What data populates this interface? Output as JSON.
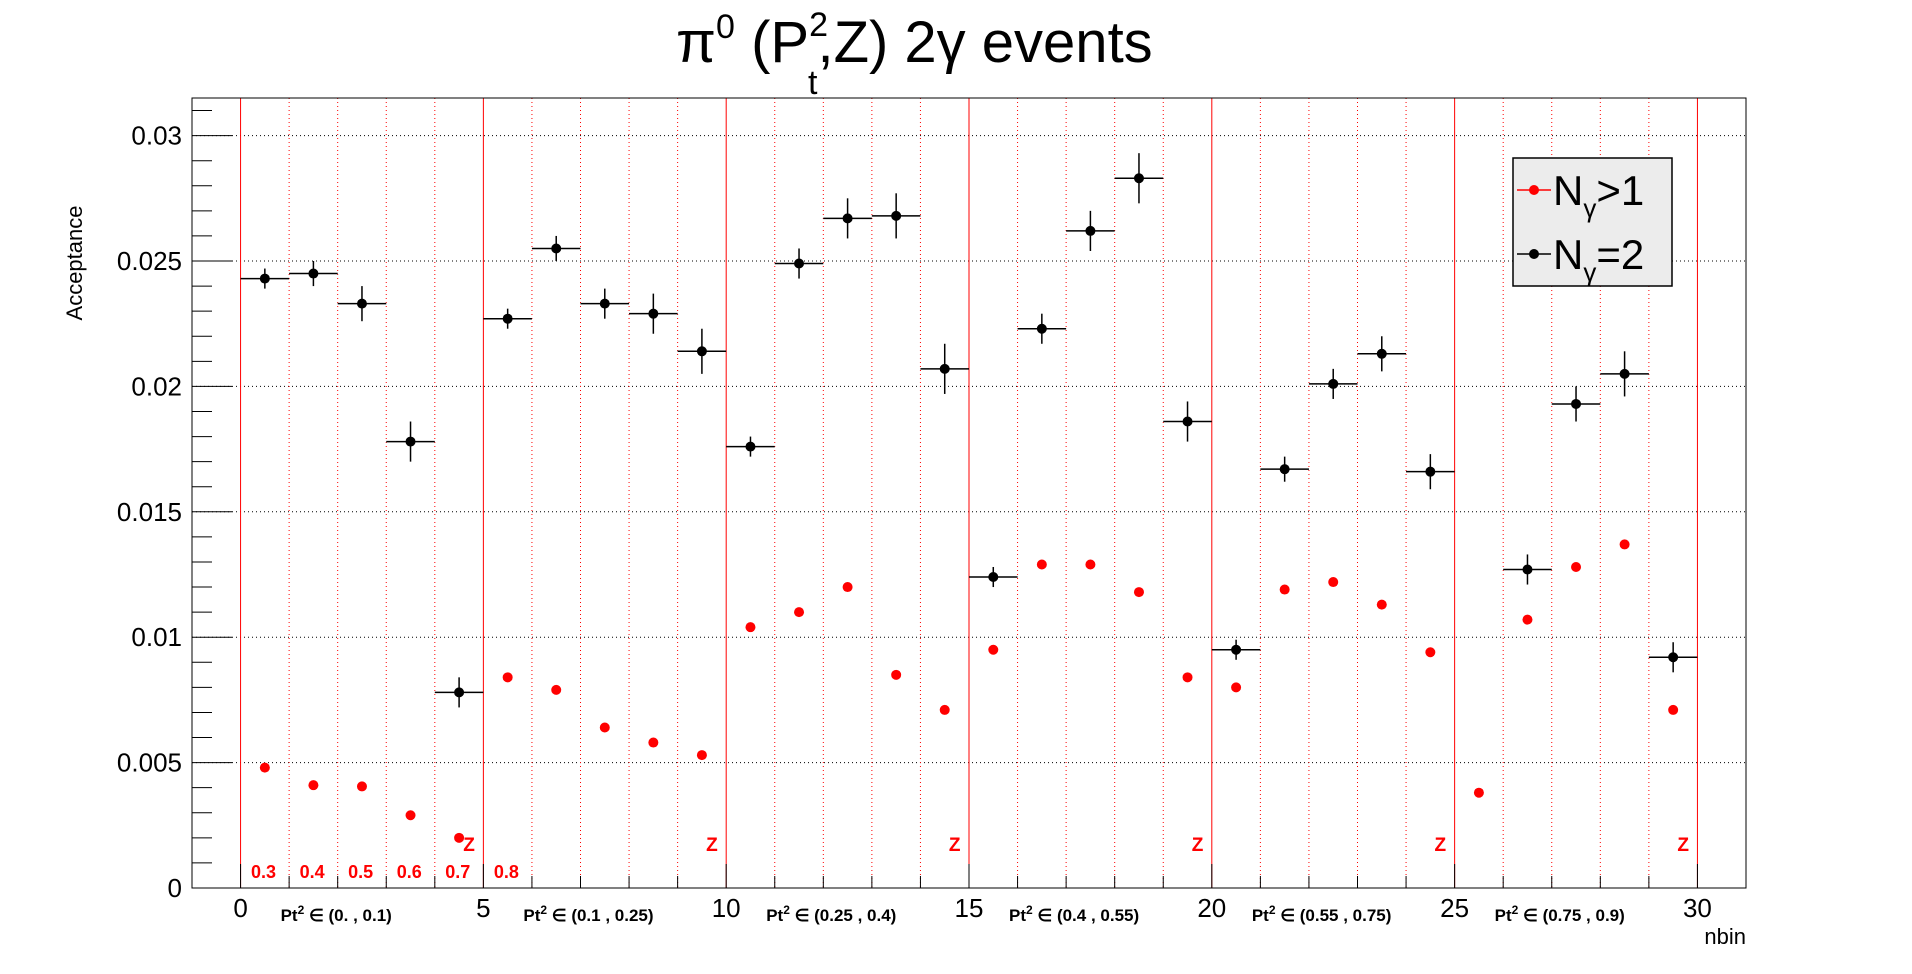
{
  "chart_data": {
    "type": "scatter",
    "title": {
      "parts": [
        "π",
        "0",
        " (P",
        "2",
        "t",
        ",Z) 2γ events"
      ]
    },
    "ylabel": "Acceptance",
    "xlabel": "nbin",
    "xlim": [
      -1,
      31
    ],
    "ylim": [
      0,
      0.0315
    ],
    "x_ticks": [
      0,
      5,
      10,
      15,
      20,
      25,
      30
    ],
    "y_ticks": [
      0,
      0.005,
      0.01,
      0.015,
      0.02,
      0.025,
      0.03
    ],
    "y_tick_labels": [
      "0",
      "0.005",
      "0.01",
      "0.015",
      "0.02",
      "0.025",
      "0.03"
    ],
    "grid": true,
    "legend_position": "top-right",
    "legend": [
      {
        "name": "Nγ>1",
        "base": "N",
        "sub": "γ",
        "rest": ">1",
        "color": "#ff0000"
      },
      {
        "name": "Nγ=2",
        "base": "N",
        "sub": "γ",
        "rest": "=2",
        "color": "#000000"
      }
    ],
    "z_bin_labels": [
      "0.3",
      "0.4",
      "0.5",
      "0.6",
      "0.7",
      "0.8"
    ],
    "z_marker": "Z",
    "pt_ranges": [
      {
        "prefix": "Pt",
        "sup": "2",
        "text": " ∈ (0. , 0.1)"
      },
      {
        "prefix": "Pt",
        "sup": "2",
        "text": " ∈ (0.1 , 0.25)"
      },
      {
        "prefix": "Pt",
        "sup": "2",
        "text": " ∈ (0.25 , 0.4)"
      },
      {
        "prefix": "Pt",
        "sup": "2",
        "text": " ∈ (0.4 , 0.55)"
      },
      {
        "prefix": "Pt",
        "sup": "2",
        "text": " ∈ (0.55 , 0.75)"
      },
      {
        "prefix": "Pt",
        "sup": "2",
        "text": " ∈ (0.75 , 0.9)"
      }
    ],
    "series": [
      {
        "name": "Nγ>1",
        "color": "#ff0000",
        "error_bars": false,
        "x": [
          0.5,
          1.5,
          2.5,
          3.5,
          4.5,
          5.5,
          6.5,
          7.5,
          8.5,
          9.5,
          10.5,
          11.5,
          12.5,
          13.5,
          14.5,
          15.5,
          16.5,
          17.5,
          18.5,
          19.5,
          20.5,
          21.5,
          22.5,
          23.5,
          24.5,
          25.5,
          26.5,
          27.5,
          28.5,
          29.5
        ],
        "y": [
          0.0048,
          0.0041,
          0.00405,
          0.0029,
          0.002,
          0.0084,
          0.0079,
          0.0064,
          0.0058,
          0.0053,
          0.0104,
          0.011,
          0.012,
          0.0085,
          0.0071,
          0.0095,
          0.0129,
          0.0129,
          0.0118,
          0.0084,
          0.008,
          0.0119,
          0.0122,
          0.0113,
          0.0094,
          0.0038,
          0.0107,
          0.0128,
          0.0137,
          0.0071
        ]
      },
      {
        "name": "Nγ=2",
        "color": "#000000",
        "error_bars": true,
        "x": [
          0.5,
          1.5,
          2.5,
          3.5,
          4.5,
          5.5,
          6.5,
          7.5,
          8.5,
          9.5,
          10.5,
          11.5,
          12.5,
          13.5,
          14.5,
          15.5,
          16.5,
          17.5,
          18.5,
          19.5,
          20.5,
          21.5,
          22.5,
          23.5,
          24.5,
          25.5,
          26.5,
          27.5,
          28.5,
          29.5
        ],
        "y": [
          0.0243,
          0.0245,
          0.0233,
          0.0178,
          0.0078,
          0.0227,
          0.0255,
          0.0233,
          0.0229,
          0.0214,
          0.0176,
          0.0249,
          0.0267,
          0.0268,
          0.0207,
          0.0124,
          0.0223,
          0.0262,
          0.0283,
          0.0186,
          0.0095,
          0.0167,
          0.0201,
          0.0213,
          0.0166,
          null,
          0.0127,
          0.0193,
          0.0205,
          0.0092
        ],
        "y_err": [
          0.0004,
          0.0005,
          0.0007,
          0.0008,
          0.0006,
          0.0004,
          0.0005,
          0.0006,
          0.0008,
          0.0009,
          0.0004,
          0.0006,
          0.0008,
          0.0009,
          0.001,
          0.0004,
          0.0006,
          0.0008,
          0.001,
          0.0008,
          0.0004,
          0.0005,
          0.0006,
          0.0007,
          0.0007,
          null,
          0.0006,
          0.0007,
          0.0009,
          0.0006
        ]
      }
    ]
  }
}
